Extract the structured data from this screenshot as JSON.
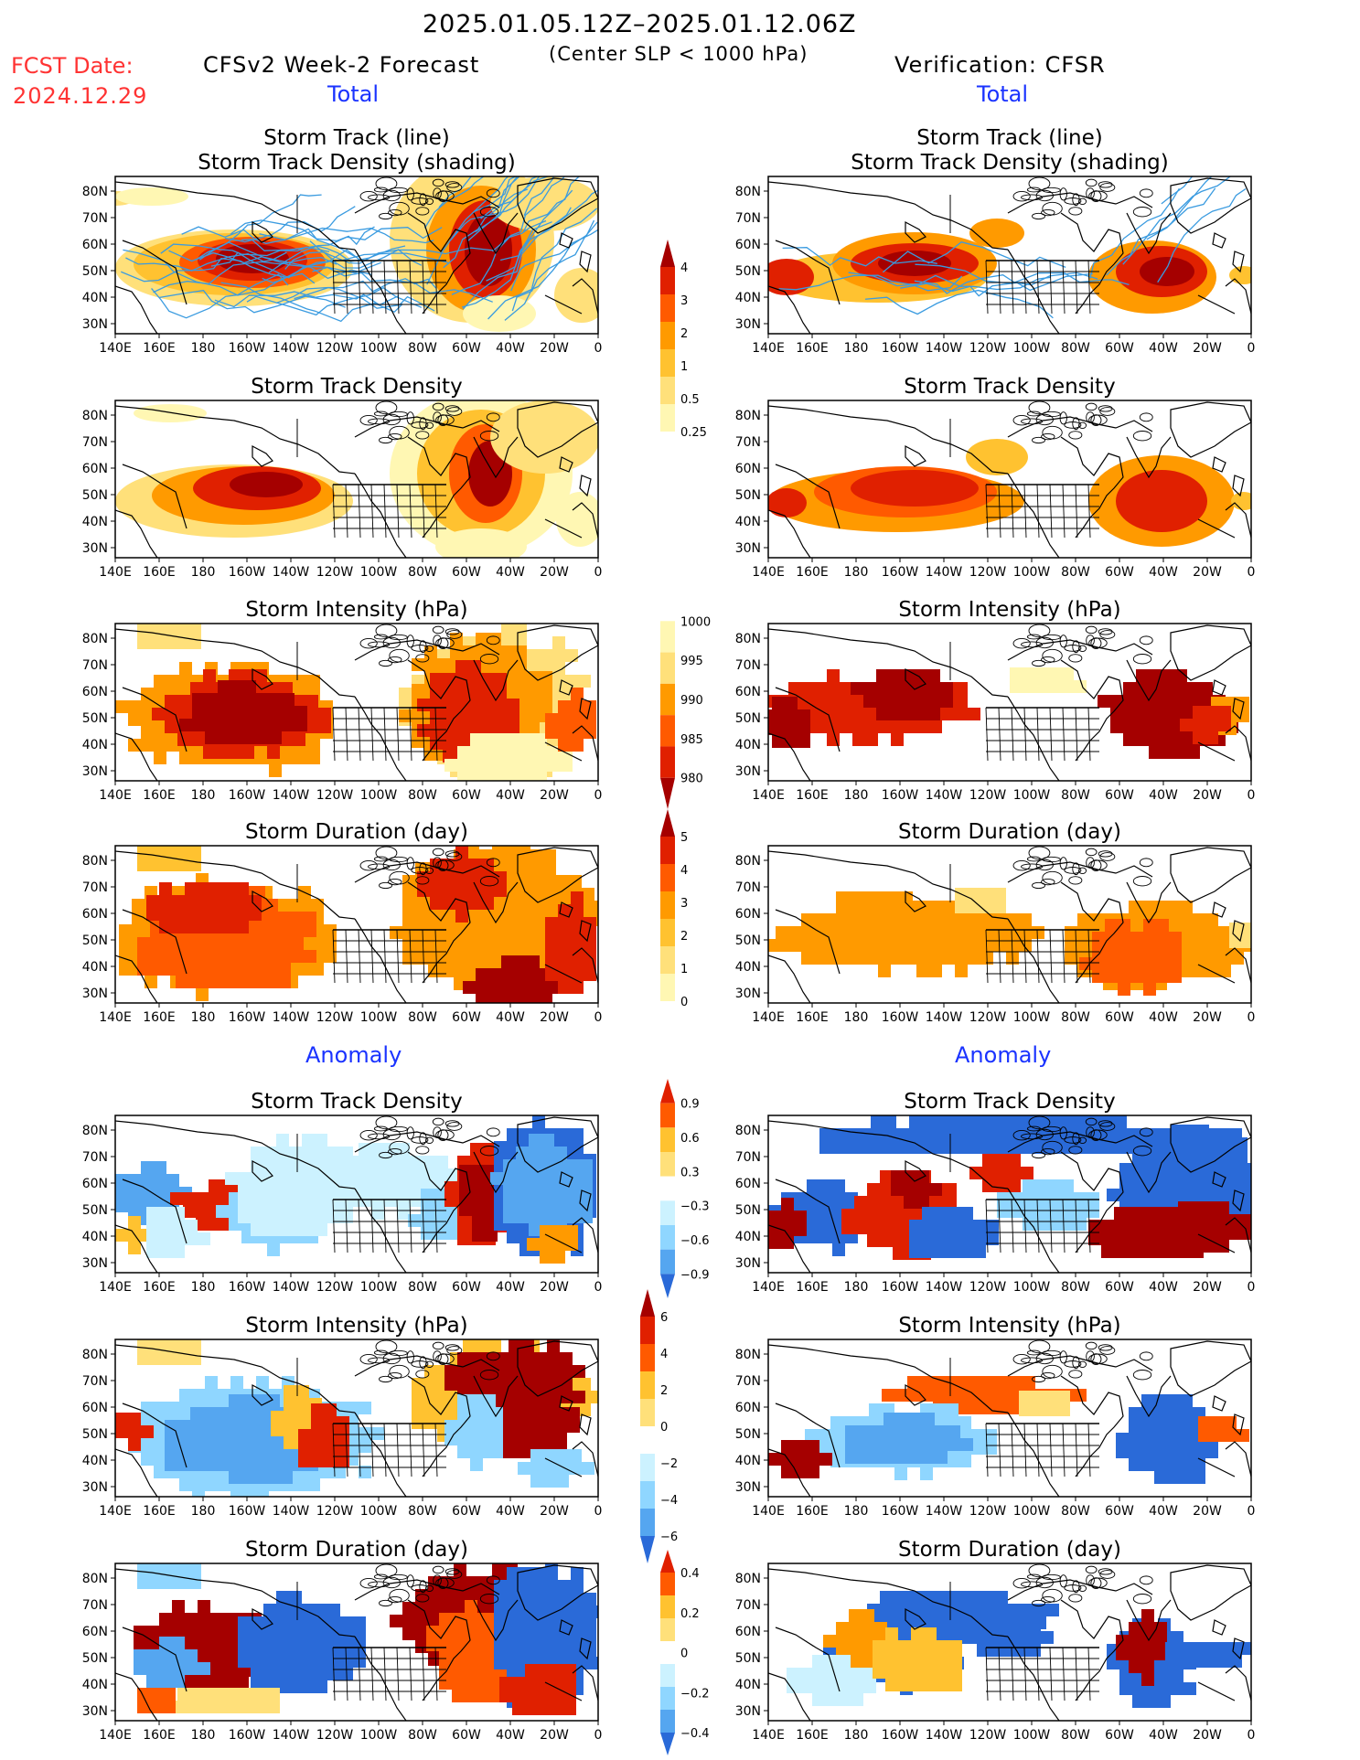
{
  "header": {
    "date_range": "2025.01.05.12Z–2025.01.12.06Z",
    "fcst_label": "FCST Date:",
    "fcst_date": "2024.12.29",
    "left_model": "CFSv2 Week-2 Forecast",
    "criterion": "(Center SLP < 1000 hPa)",
    "right_model": "Verification: CFSR"
  },
  "sections": {
    "total": "Total",
    "anomaly": "Anomaly"
  },
  "panel_titles": {
    "track_line": "Storm Track (line)",
    "track_shading": "Storm Track Density (shading)",
    "density": "Storm Track Density",
    "intensity": "Storm Intensity (hPa)",
    "duration": "Storm Duration (day)"
  },
  "lat_labels": [
    "80N",
    "70N",
    "60N",
    "50N",
    "40N",
    "30N"
  ],
  "lon_labels": [
    "140E",
    "160E",
    "180",
    "160W",
    "140W",
    "120W",
    "100W",
    "80W",
    "60W",
    "40W",
    "20W",
    "0"
  ],
  "colorbars": {
    "density_total": [
      "4",
      "3",
      "2",
      "1",
      "0.5",
      "0.25"
    ],
    "intensity_total": [
      "1000",
      "995",
      "990",
      "985",
      "980"
    ],
    "duration_total": [
      "5",
      "4",
      "3",
      "2",
      "1",
      "0"
    ],
    "density_anom": [
      "0.9",
      "0.6",
      "0.3",
      "−0.3",
      "−0.6",
      "−0.9"
    ],
    "intensity_anom": [
      "6",
      "4",
      "2",
      "0",
      "−2",
      "−4",
      "−6"
    ],
    "duration_anom": [
      "0.4",
      "0.2",
      "0",
      "−0.2",
      "−0.4"
    ]
  },
  "colors": {
    "title_red": "#ff3333",
    "section_blue": "#1a33ff",
    "track_line": "#3a9be0",
    "warm": [
      "#fff7b3",
      "#ffe07a",
      "#ffc230",
      "#ff9a00",
      "#ff5a00",
      "#e02000",
      "#a50000"
    ],
    "cool": [
      "#ccf2ff",
      "#8fd6ff",
      "#55a6f0",
      "#2a6ad8"
    ]
  }
}
